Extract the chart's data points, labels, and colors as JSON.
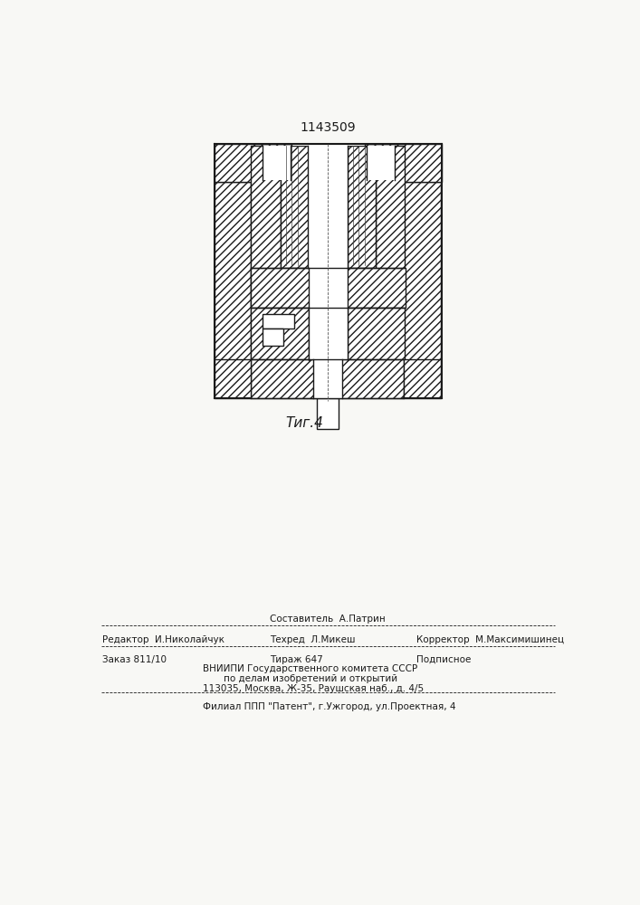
{
  "title": "1143509",
  "fig_label": "Τиг.4",
  "bg_color": "#f8f8f5",
  "line_color": "#1a1a1a",
  "footer_sestavitel": "Составитель  А.Патрин",
  "footer_redaktor": "Редактор  И.Николайчук",
  "footer_tehred": "Техред  Л.Микеш",
  "footer_korrektor": "Корректор  М.Максимишинец",
  "footer_zakaz": "Заказ 811/10",
  "footer_tirazh": "Тираж 647",
  "footer_podpisnoe": "Подписное",
  "footer_vniip1": "ВНИИПИ Государственного комитета СССР",
  "footer_vniip2": "по делам изобретений и открытий",
  "footer_addr": "113035, Москва, Ж-35, Раушская наб., д. 4/5",
  "footer_filial": "Филиал ППП \"Патент\", г.Ужгород, ул.Проектная, 4"
}
